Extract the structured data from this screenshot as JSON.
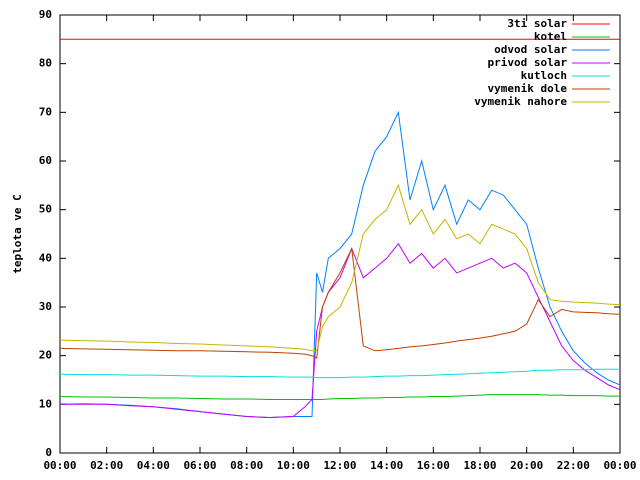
{
  "chart_data": {
    "type": "line",
    "y_label": "teplota ve C",
    "x": [
      0,
      1,
      2,
      3,
      4,
      5,
      6,
      7,
      8,
      9,
      10,
      10.5,
      10.8,
      11,
      11.25,
      11.5,
      12,
      12.5,
      13,
      13.5,
      14,
      14.5,
      15,
      15.5,
      16,
      16.5,
      17,
      17.5,
      18,
      18.5,
      19,
      19.5,
      20,
      20.5,
      21,
      21.5,
      22,
      22.5,
      23,
      23.5,
      24
    ],
    "xlim": [
      0,
      24
    ],
    "xticks": [
      {
        "value": 0,
        "label": "00:00"
      },
      {
        "value": 2,
        "label": "02:00"
      },
      {
        "value": 4,
        "label": "04:00"
      },
      {
        "value": 6,
        "label": "06:00"
      },
      {
        "value": 8,
        "label": "08:00"
      },
      {
        "value": 10,
        "label": "10:00"
      },
      {
        "value": 12,
        "label": "12:00"
      },
      {
        "value": 14,
        "label": "14:00"
      },
      {
        "value": 16,
        "label": "16:00"
      },
      {
        "value": 18,
        "label": "18:00"
      },
      {
        "value": 20,
        "label": "20:00"
      },
      {
        "value": 22,
        "label": "22:00"
      },
      {
        "value": 24,
        "label": "00:00"
      }
    ],
    "ylim": [
      0,
      90
    ],
    "yticks": [
      0,
      10,
      20,
      30,
      40,
      50,
      60,
      70,
      80,
      90
    ],
    "legend": "top-right",
    "series": [
      {
        "name": "3ti solar",
        "color": "#ff0000",
        "values": [
          85,
          85,
          85,
          85,
          85,
          85,
          85,
          85,
          85,
          85,
          85,
          85,
          85,
          85,
          85,
          85,
          85,
          85,
          85,
          85,
          85,
          85,
          85,
          85,
          85,
          85,
          85,
          85,
          85,
          85,
          85,
          85,
          85,
          85,
          85,
          85,
          85,
          85,
          85,
          85,
          85
        ]
      },
      {
        "name": "kotel",
        "color": "#00c000",
        "values": [
          11.6,
          11.5,
          11.5,
          11.4,
          11.3,
          11.3,
          11.2,
          11.1,
          11.1,
          11,
          11,
          11,
          11,
          11,
          11,
          11.1,
          11.2,
          11.2,
          11.3,
          11.3,
          11.4,
          11.4,
          11.5,
          11.5,
          11.6,
          11.6,
          11.7,
          11.8,
          11.9,
          12,
          12,
          12,
          12,
          12,
          11.9,
          11.9,
          11.8,
          11.8,
          11.8,
          11.7,
          11.7
        ]
      },
      {
        "name": "odvod solar",
        "color": "#0080ff",
        "values": [
          10,
          10.1,
          10,
          9.8,
          9.5,
          9.1,
          8.5,
          8,
          7.5,
          7.3,
          7.5,
          7.5,
          7.5,
          37,
          33,
          40,
          42,
          45,
          55,
          62,
          65,
          70,
          52,
          60,
          50,
          55,
          47,
          52,
          50,
          54,
          53,
          50,
          47,
          38,
          30,
          25,
          21,
          18.5,
          16.5,
          15,
          14
        ]
      },
      {
        "name": "privod solar",
        "color": "#c000ff",
        "values": [
          10,
          10,
          10,
          9.7,
          9.5,
          9,
          8.5,
          8,
          7.5,
          7.3,
          7.5,
          9.5,
          11,
          25,
          30,
          33,
          36,
          42,
          36,
          38,
          40,
          43,
          39,
          41,
          38,
          40,
          37,
          38,
          39,
          40,
          38,
          39,
          37,
          32,
          27,
          22,
          19,
          17,
          15.5,
          14,
          13
        ]
      },
      {
        "name": "kutloch",
        "color": "#00e0e0",
        "values": [
          16.2,
          16.1,
          16.1,
          16,
          16,
          15.9,
          15.8,
          15.8,
          15.7,
          15.7,
          15.6,
          15.6,
          15.6,
          15.5,
          15.5,
          15.5,
          15.5,
          15.6,
          15.6,
          15.7,
          15.8,
          15.8,
          15.9,
          15.9,
          16,
          16.1,
          16.2,
          16.3,
          16.4,
          16.5,
          16.6,
          16.7,
          16.8,
          17,
          17,
          17.1,
          17.1,
          17.1,
          17.2,
          17.2,
          17.2
        ]
      },
      {
        "name": "vymenik dole",
        "color": "#c04000",
        "values": [
          21.5,
          21.4,
          21.3,
          21.2,
          21.1,
          21,
          21,
          20.9,
          20.8,
          20.7,
          20.5,
          20.3,
          20,
          19.5,
          30,
          33,
          37,
          42,
          22,
          21,
          21.2,
          21.5,
          21.8,
          22,
          22.3,
          22.6,
          23,
          23.3,
          23.6,
          24,
          24.5,
          25,
          26.5,
          31.5,
          28,
          29.5,
          29,
          28.9,
          28.8,
          28.6,
          28.5
        ]
      },
      {
        "name": "vymenik nahore",
        "color": "#c8b400",
        "values": [
          23.2,
          23.1,
          23,
          22.8,
          22.7,
          22.5,
          22.4,
          22.2,
          22,
          21.8,
          21.5,
          21.3,
          21,
          21,
          26,
          28,
          30,
          35,
          45,
          48,
          50,
          55,
          47,
          50,
          45,
          48,
          44,
          45,
          43,
          47,
          46,
          45,
          42,
          35,
          31.5,
          31.2,
          31,
          30.9,
          30.8,
          30.6,
          30.5
        ]
      }
    ]
  }
}
